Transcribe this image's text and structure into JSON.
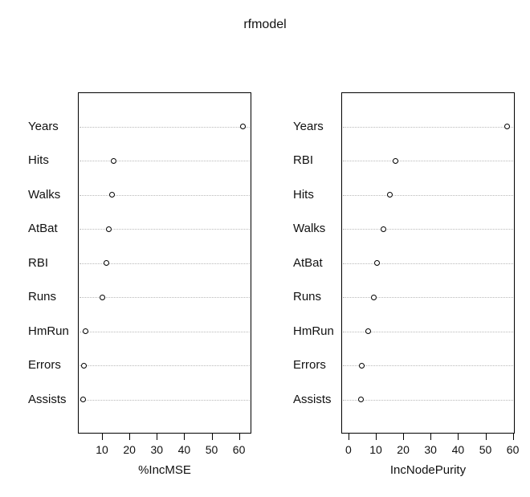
{
  "title": "rfmodel",
  "colors": {
    "background": "#ffffff",
    "box_border": "#000000",
    "grid": "#b9b9b9",
    "point_stroke": "#000000",
    "text": "#111111"
  },
  "chart_data": [
    {
      "type": "scatter",
      "subtype": "dotchart",
      "xlabel": "%IncMSE",
      "categories": [
        "Years",
        "Hits",
        "Walks",
        "AtBat",
        "RBI",
        "Runs",
        "HmRun",
        "Errors",
        "Assists"
      ],
      "values": [
        61.5,
        14.3,
        13.7,
        12.6,
        11.5,
        10.0,
        4.1,
        3.4,
        3.1
      ],
      "xticks": [
        10,
        20,
        30,
        40,
        50,
        60
      ],
      "xlim": [
        1.2,
        64.5
      ],
      "grid": "dotted-horizontal",
      "legend": "none"
    },
    {
      "type": "scatter",
      "subtype": "dotchart",
      "xlabel": "IncNodePurity",
      "categories": [
        "Years",
        "RBI",
        "Hits",
        "Walks",
        "AtBat",
        "Runs",
        "HmRun",
        "Errors",
        "Assists"
      ],
      "values": [
        58.0,
        17.2,
        15.1,
        12.8,
        10.4,
        9.4,
        7.2,
        5.0,
        4.5
      ],
      "xticks": [
        0,
        10,
        20,
        30,
        40,
        50,
        60
      ],
      "xlim": [
        -2.6,
        60.7
      ],
      "grid": "dotted-horizontal",
      "legend": "none"
    }
  ]
}
